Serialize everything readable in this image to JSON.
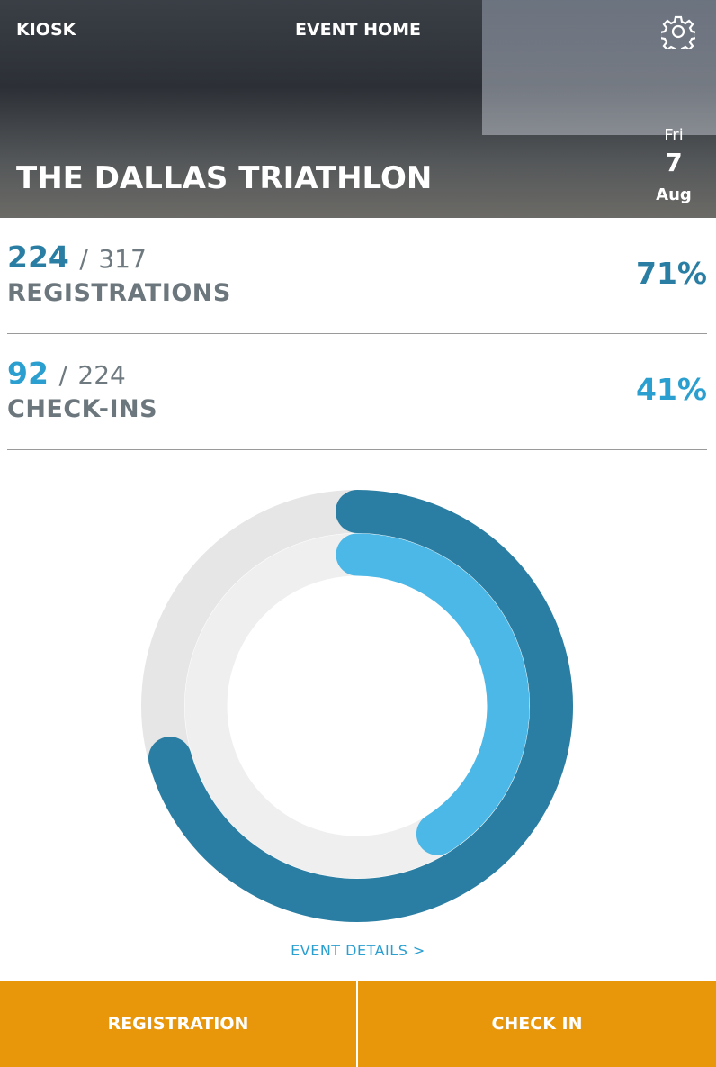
{
  "header": {
    "left": "KIOSK",
    "title": "EVENT HOME",
    "event_name": "THE DALLAS TRIATHLON",
    "date": {
      "weekday": "Fri",
      "day": "7",
      "month": "Aug"
    }
  },
  "stats": [
    {
      "count": 224,
      "separator": "/",
      "total": 317,
      "label": "REGISTRATIONS",
      "percent": "71%"
    },
    {
      "count": 92,
      "separator": "/",
      "total": 224,
      "label": "CHECK-INS",
      "percent": "41%"
    }
  ],
  "link": "EVENT DETAILS >",
  "buttons": [
    "REGISTRATION",
    "CHECK IN"
  ]
}
